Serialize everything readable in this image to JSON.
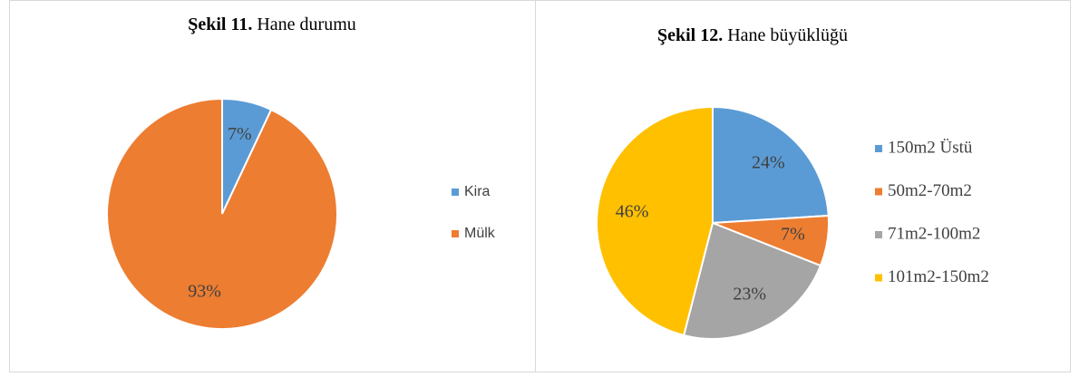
{
  "chart_data": [
    {
      "type": "pie",
      "figure_label": "Şekil 11.",
      "title": "Hane durumu",
      "categories": [
        "Kira",
        "Mülk"
      ],
      "values": [
        7,
        93
      ],
      "value_labels": [
        "7%",
        "93%"
      ],
      "colors": [
        "#5b9bd5",
        "#ed7d31"
      ],
      "legend": "right"
    },
    {
      "type": "pie",
      "figure_label": "Şekil 12.",
      "title": "Hane büyüklüğü",
      "categories": [
        "150m2 Üstü",
        "50m2-70m2",
        "71m2-100m2",
        "101m2-150m2"
      ],
      "values": [
        24,
        7,
        23,
        46
      ],
      "value_labels": [
        "24%",
        "7%",
        "23%",
        "46%"
      ],
      "colors": [
        "#5b9bd5",
        "#ed7d31",
        "#a5a5a5",
        "#ffc000"
      ],
      "legend": "right"
    }
  ]
}
